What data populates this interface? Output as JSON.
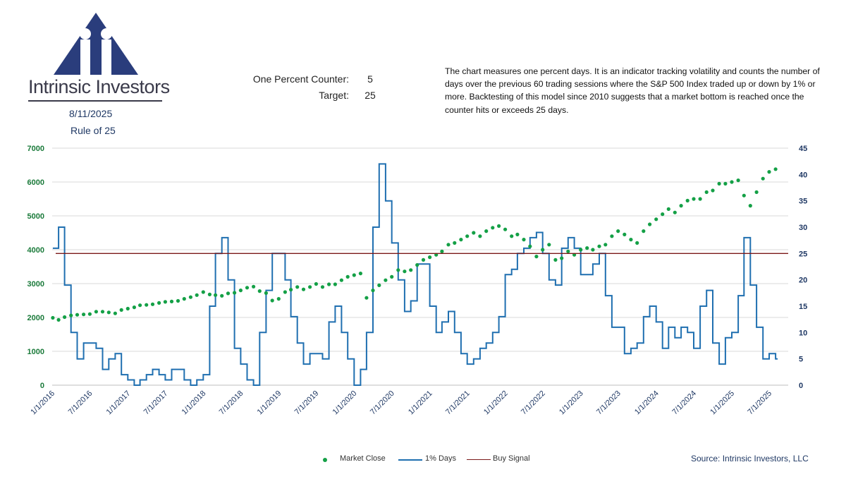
{
  "header": {
    "date": "8/11/2025",
    "rule": "Rule of 25",
    "counter_label": "One Percent Counter:",
    "counter_value": "5",
    "target_label": "Target:",
    "target_value": "25",
    "description": "The chart measures one percent days.  It is an indicator tracking volatility and counts the number of days over the previous 60 trading sessions where the S&P 500 Index traded up or down by 1% or more. Backtesting of this model since 2010 suggests that a market bottom is reached once the counter hits or exceeds 25 days.",
    "logo_text": "Intrinsic Investors",
    "source": "Source: Intrinsic Investors, LLC"
  },
  "colors": {
    "market_close": "#14a046",
    "one_pct_days": "#1f6fb0",
    "buy_signal": "#7b1a1a",
    "left_axis": "#1a7a3a",
    "right_axis": "#1f3864",
    "logo": "#2a3d7c"
  },
  "chart_data": {
    "type": "line",
    "x_ticks": [
      "1/1/2016",
      "7/1/2016",
      "1/1/2017",
      "7/1/2017",
      "1/1/2018",
      "7/1/2018",
      "1/1/2019",
      "7/1/2019",
      "1/1/2020",
      "7/1/2020",
      "1/1/2021",
      "7/1/2021",
      "1/1/2022",
      "7/1/2022",
      "1/1/2023",
      "7/1/2023",
      "1/1/2024",
      "7/1/2024",
      "1/1/2025",
      "7/1/2025"
    ],
    "y_left": {
      "min": 0,
      "max": 7000,
      "ticks": [
        "0",
        "1000",
        "2000",
        "3000",
        "4000",
        "5000",
        "6000",
        "7000"
      ]
    },
    "y_right": {
      "min": 0,
      "max": 45,
      "ticks": [
        "0",
        "5",
        "10",
        "15",
        "20",
        "25",
        "30",
        "35",
        "40",
        "45"
      ]
    },
    "buy_signal": 25,
    "series": [
      {
        "name": "Market Close",
        "axis": "left",
        "style": "dots",
        "points": [
          [
            "2016-01-04",
            1990
          ],
          [
            "2016-02-01",
            1930
          ],
          [
            "2016-03-01",
            2010
          ],
          [
            "2016-04-01",
            2060
          ],
          [
            "2016-05-01",
            2080
          ],
          [
            "2016-06-01",
            2090
          ],
          [
            "2016-07-01",
            2100
          ],
          [
            "2016-08-01",
            2170
          ],
          [
            "2016-09-01",
            2170
          ],
          [
            "2016-10-01",
            2150
          ],
          [
            "2016-11-01",
            2120
          ],
          [
            "2016-12-01",
            2220
          ],
          [
            "2017-01-01",
            2260
          ],
          [
            "2017-02-01",
            2300
          ],
          [
            "2017-03-01",
            2360
          ],
          [
            "2017-04-01",
            2370
          ],
          [
            "2017-05-01",
            2390
          ],
          [
            "2017-06-01",
            2430
          ],
          [
            "2017-07-01",
            2460
          ],
          [
            "2017-08-01",
            2470
          ],
          [
            "2017-09-01",
            2490
          ],
          [
            "2017-10-01",
            2550
          ],
          [
            "2017-11-01",
            2600
          ],
          [
            "2017-12-01",
            2660
          ],
          [
            "2018-01-01",
            2750
          ],
          [
            "2018-02-01",
            2680
          ],
          [
            "2018-03-01",
            2660
          ],
          [
            "2018-04-01",
            2640
          ],
          [
            "2018-05-01",
            2710
          ],
          [
            "2018-06-01",
            2730
          ],
          [
            "2018-07-01",
            2800
          ],
          [
            "2018-08-01",
            2880
          ],
          [
            "2018-09-01",
            2910
          ],
          [
            "2018-10-01",
            2780
          ],
          [
            "2018-11-01",
            2720
          ],
          [
            "2018-12-01",
            2500
          ],
          [
            "2019-01-01",
            2550
          ],
          [
            "2019-02-01",
            2750
          ],
          [
            "2019-03-01",
            2820
          ],
          [
            "2019-04-01",
            2900
          ],
          [
            "2019-05-01",
            2830
          ],
          [
            "2019-06-01",
            2900
          ],
          [
            "2019-07-01",
            2990
          ],
          [
            "2019-08-01",
            2900
          ],
          [
            "2019-09-01",
            2980
          ],
          [
            "2019-10-01",
            2980
          ],
          [
            "2019-11-01",
            3100
          ],
          [
            "2019-12-01",
            3200
          ],
          [
            "2020-01-01",
            3250
          ],
          [
            "2020-02-01",
            3300
          ],
          [
            "2020-03-01",
            2580
          ],
          [
            "2020-04-01",
            2800
          ],
          [
            "2020-05-01",
            2950
          ],
          [
            "2020-06-01",
            3100
          ],
          [
            "2020-07-01",
            3200
          ],
          [
            "2020-08-01",
            3400
          ],
          [
            "2020-09-01",
            3360
          ],
          [
            "2020-10-01",
            3400
          ],
          [
            "2020-11-01",
            3550
          ],
          [
            "2020-12-01",
            3700
          ],
          [
            "2021-01-01",
            3780
          ],
          [
            "2021-02-01",
            3850
          ],
          [
            "2021-03-01",
            3950
          ],
          [
            "2021-04-01",
            4150
          ],
          [
            "2021-05-01",
            4200
          ],
          [
            "2021-06-01",
            4300
          ],
          [
            "2021-07-01",
            4400
          ],
          [
            "2021-08-01",
            4500
          ],
          [
            "2021-09-01",
            4400
          ],
          [
            "2021-10-01",
            4550
          ],
          [
            "2021-11-01",
            4650
          ],
          [
            "2021-12-01",
            4700
          ],
          [
            "2022-01-01",
            4600
          ],
          [
            "2022-02-01",
            4400
          ],
          [
            "2022-03-01",
            4450
          ],
          [
            "2022-04-01",
            4300
          ],
          [
            "2022-05-01",
            4100
          ],
          [
            "2022-06-01",
            3800
          ],
          [
            "2022-07-01",
            4000
          ],
          [
            "2022-08-01",
            4150
          ],
          [
            "2022-09-01",
            3700
          ],
          [
            "2022-10-01",
            3750
          ],
          [
            "2022-11-01",
            3950
          ],
          [
            "2022-12-01",
            3850
          ],
          [
            "2023-01-01",
            4000
          ],
          [
            "2023-02-01",
            4050
          ],
          [
            "2023-03-01",
            4000
          ],
          [
            "2023-04-01",
            4100
          ],
          [
            "2023-05-01",
            4150
          ],
          [
            "2023-06-01",
            4400
          ],
          [
            "2023-07-01",
            4550
          ],
          [
            "2023-08-01",
            4450
          ],
          [
            "2023-09-01",
            4300
          ],
          [
            "2023-10-01",
            4200
          ],
          [
            "2023-11-01",
            4550
          ],
          [
            "2023-12-01",
            4750
          ],
          [
            "2024-01-01",
            4900
          ],
          [
            "2024-02-01",
            5050
          ],
          [
            "2024-03-01",
            5200
          ],
          [
            "2024-04-01",
            5100
          ],
          [
            "2024-05-01",
            5300
          ],
          [
            "2024-06-01",
            5450
          ],
          [
            "2024-07-01",
            5500
          ],
          [
            "2024-08-01",
            5500
          ],
          [
            "2024-09-01",
            5700
          ],
          [
            "2024-10-01",
            5750
          ],
          [
            "2024-11-01",
            5950
          ],
          [
            "2024-12-01",
            5950
          ],
          [
            "2025-01-01",
            6000
          ],
          [
            "2025-02-01",
            6050
          ],
          [
            "2025-03-01",
            5600
          ],
          [
            "2025-04-01",
            5300
          ],
          [
            "2025-05-01",
            5700
          ],
          [
            "2025-06-01",
            6100
          ],
          [
            "2025-07-01",
            6300
          ],
          [
            "2025-08-01",
            6380
          ]
        ]
      },
      {
        "name": "1% Days",
        "axis": "right",
        "style": "step",
        "points": [
          [
            "2016-01-04",
            26
          ],
          [
            "2016-02-01",
            30
          ],
          [
            "2016-03-01",
            19
          ],
          [
            "2016-04-01",
            10
          ],
          [
            "2016-05-01",
            5
          ],
          [
            "2016-06-01",
            8
          ],
          [
            "2016-07-01",
            8
          ],
          [
            "2016-08-01",
            7
          ],
          [
            "2016-09-01",
            3
          ],
          [
            "2016-10-01",
            5
          ],
          [
            "2016-11-01",
            6
          ],
          [
            "2016-12-01",
            2
          ],
          [
            "2017-01-01",
            1
          ],
          [
            "2017-02-01",
            0
          ],
          [
            "2017-03-01",
            1
          ],
          [
            "2017-04-01",
            2
          ],
          [
            "2017-05-01",
            3
          ],
          [
            "2017-06-01",
            2
          ],
          [
            "2017-07-01",
            1
          ],
          [
            "2017-08-01",
            3
          ],
          [
            "2017-09-01",
            3
          ],
          [
            "2017-10-01",
            1
          ],
          [
            "2017-11-01",
            0
          ],
          [
            "2017-12-01",
            1
          ],
          [
            "2018-01-01",
            2
          ],
          [
            "2018-02-01",
            15
          ],
          [
            "2018-03-01",
            25
          ],
          [
            "2018-04-01",
            28
          ],
          [
            "2018-05-01",
            20
          ],
          [
            "2018-06-01",
            7
          ],
          [
            "2018-07-01",
            4
          ],
          [
            "2018-08-01",
            1
          ],
          [
            "2018-09-01",
            0
          ],
          [
            "2018-10-01",
            10
          ],
          [
            "2018-11-01",
            18
          ],
          [
            "2018-12-01",
            25
          ],
          [
            "2019-01-01",
            25
          ],
          [
            "2019-02-01",
            20
          ],
          [
            "2019-03-01",
            13
          ],
          [
            "2019-04-01",
            8
          ],
          [
            "2019-05-01",
            4
          ],
          [
            "2019-06-01",
            6
          ],
          [
            "2019-07-01",
            6
          ],
          [
            "2019-08-01",
            5
          ],
          [
            "2019-09-01",
            12
          ],
          [
            "2019-10-01",
            15
          ],
          [
            "2019-11-01",
            10
          ],
          [
            "2019-12-01",
            5
          ],
          [
            "2020-01-01",
            0
          ],
          [
            "2020-02-01",
            3
          ],
          [
            "2020-03-01",
            10
          ],
          [
            "2020-04-01",
            30
          ],
          [
            "2020-05-01",
            42
          ],
          [
            "2020-06-01",
            35
          ],
          [
            "2020-07-01",
            27
          ],
          [
            "2020-08-01",
            20
          ],
          [
            "2020-09-01",
            14
          ],
          [
            "2020-10-01",
            16
          ],
          [
            "2020-11-01",
            23
          ],
          [
            "2020-12-01",
            23
          ],
          [
            "2021-01-01",
            15
          ],
          [
            "2021-02-01",
            10
          ],
          [
            "2021-03-01",
            12
          ],
          [
            "2021-04-01",
            14
          ],
          [
            "2021-05-01",
            10
          ],
          [
            "2021-06-01",
            6
          ],
          [
            "2021-07-01",
            4
          ],
          [
            "2021-08-01",
            5
          ],
          [
            "2021-09-01",
            7
          ],
          [
            "2021-10-01",
            8
          ],
          [
            "2021-11-01",
            10
          ],
          [
            "2021-12-01",
            13
          ],
          [
            "2022-01-01",
            21
          ],
          [
            "2022-02-01",
            22
          ],
          [
            "2022-03-01",
            25
          ],
          [
            "2022-04-01",
            26
          ],
          [
            "2022-05-01",
            28
          ],
          [
            "2022-06-01",
            29
          ],
          [
            "2022-07-01",
            25
          ],
          [
            "2022-08-01",
            20
          ],
          [
            "2022-09-01",
            19
          ],
          [
            "2022-10-01",
            26
          ],
          [
            "2022-11-01",
            28
          ],
          [
            "2022-12-01",
            26
          ],
          [
            "2023-01-01",
            21
          ],
          [
            "2023-02-01",
            21
          ],
          [
            "2023-03-01",
            23
          ],
          [
            "2023-04-01",
            25
          ],
          [
            "2023-05-01",
            17
          ],
          [
            "2023-06-01",
            11
          ],
          [
            "2023-07-01",
            11
          ],
          [
            "2023-08-01",
            6
          ],
          [
            "2023-09-01",
            7
          ],
          [
            "2023-10-01",
            8
          ],
          [
            "2023-11-01",
            13
          ],
          [
            "2023-12-01",
            15
          ],
          [
            "2024-01-01",
            12
          ],
          [
            "2024-02-01",
            7
          ],
          [
            "2024-03-01",
            11
          ],
          [
            "2024-04-01",
            9
          ],
          [
            "2024-05-01",
            11
          ],
          [
            "2024-06-01",
            10
          ],
          [
            "2024-07-01",
            7
          ],
          [
            "2024-08-01",
            15
          ],
          [
            "2024-09-01",
            18
          ],
          [
            "2024-10-01",
            8
          ],
          [
            "2024-11-01",
            4
          ],
          [
            "2024-12-01",
            9
          ],
          [
            "2025-01-01",
            10
          ],
          [
            "2025-02-01",
            17
          ],
          [
            "2025-03-01",
            28
          ],
          [
            "2025-04-01",
            19
          ],
          [
            "2025-05-01",
            11
          ],
          [
            "2025-06-01",
            5
          ],
          [
            "2025-07-01",
            6
          ],
          [
            "2025-08-01",
            5
          ]
        ]
      },
      {
        "name": "Buy Signal",
        "axis": "right",
        "style": "hline",
        "value": 25
      }
    ]
  }
}
